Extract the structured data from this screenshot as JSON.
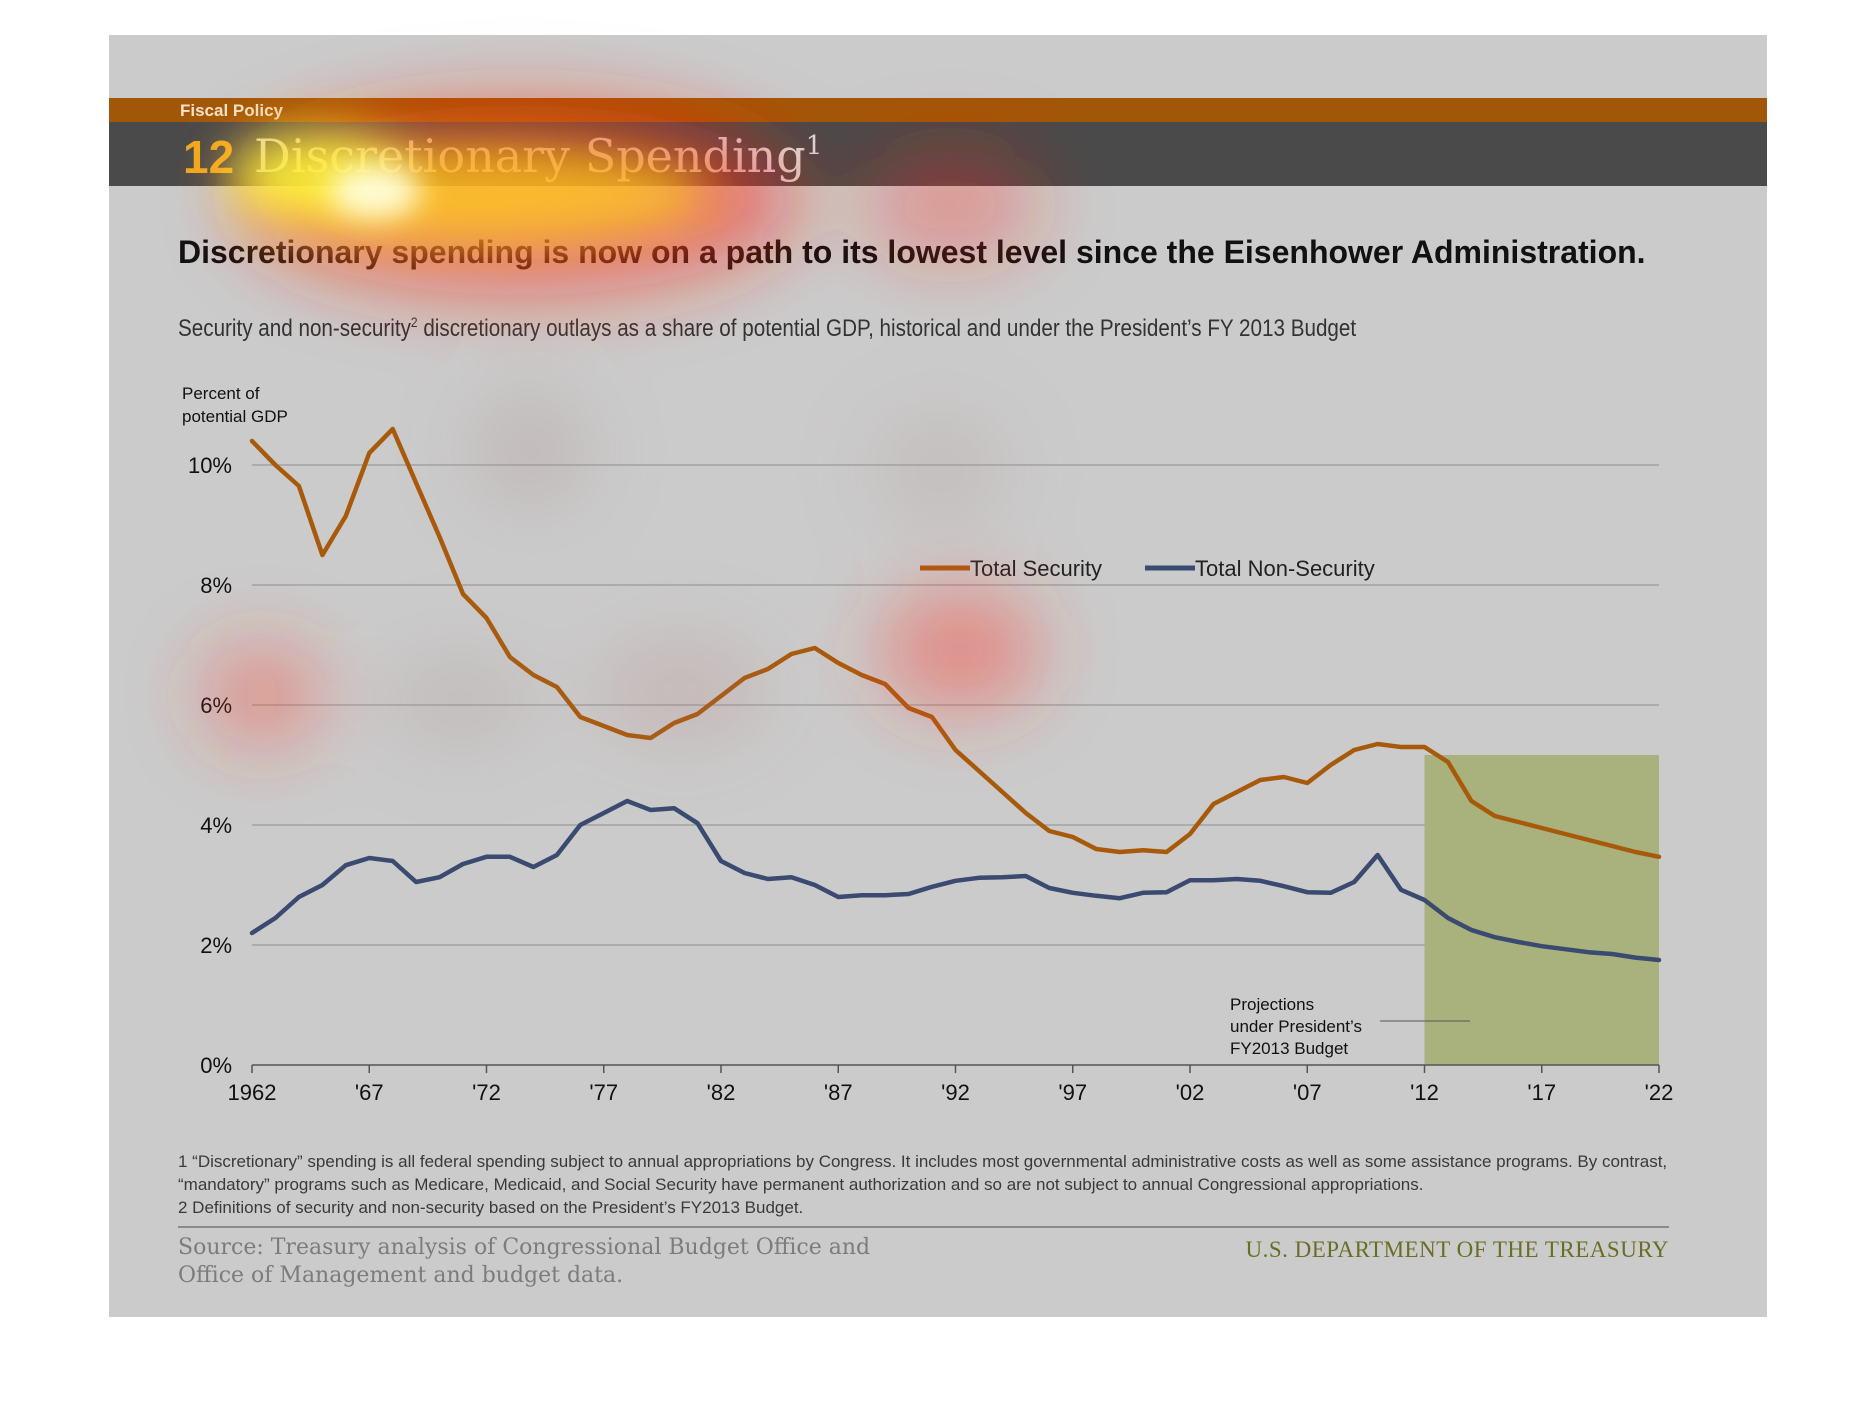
{
  "header": {
    "section": "Fiscal Policy",
    "number": "12",
    "title": "Discretionary Spending",
    "title_sup": "1"
  },
  "headline": "Discretionary spending is now on a path to its lowest level since the Eisenhower Administration.",
  "subhead": {
    "before": "Security and non-security",
    "sup": "2",
    "after": " discretionary outlays as a share of potential GDP, historical and under the President’s FY 2013 Budget"
  },
  "footnotes": [
    "1 “Discretionary” spending is all federal spending subject to annual appropriations by Congress. It includes most governmental administrative costs as well as some assistance programs. By contrast, “mandatory” programs such as Medicare, Medicaid, and Social Security have permanent authorization and so are not subject to annual Congressional appropriations.",
    "2 Definitions of security and non-security based on the President’s FY2013 Budget."
  ],
  "source": "Source: Treasury analysis of Congressional Budget Office and Office of Management and budget data.",
  "agency": "U.S. DEPARTMENT OF THE TREASURY",
  "colors": {
    "security": "#a85a0b",
    "non_security": "#3a4a70",
    "projection_shade": "#a9b27c",
    "bar_orange": "#a25708",
    "bar_dark": "#4a4a4a",
    "background": "#cbcbcb"
  },
  "chart_data": {
    "type": "line",
    "title": "",
    "ylabel": "Percent of potential GDP",
    "xlabel": "",
    "ylim": [
      0,
      10
    ],
    "xlim": [
      1962,
      2022
    ],
    "yticks": [
      0,
      2,
      4,
      6,
      8,
      10
    ],
    "ytick_labels": [
      "0%",
      "2%",
      "4%",
      "6%",
      "8%",
      "10%"
    ],
    "xticks": [
      1962,
      1967,
      1972,
      1977,
      1982,
      1987,
      1992,
      1997,
      2002,
      2007,
      2012,
      2017,
      2022
    ],
    "xtick_labels": [
      "1962",
      "'67",
      "'72",
      "'77",
      "'82",
      "'87",
      "'92",
      "'97",
      "'02",
      "'07",
      "'12",
      "'17",
      "'22"
    ],
    "grid": "horizontal",
    "legend": "top-center",
    "projection_start": 2012,
    "projection_label": "Projections under President’s FY2013 Budget",
    "x": [
      1962,
      1963,
      1964,
      1965,
      1966,
      1967,
      1968,
      1969,
      1970,
      1971,
      1972,
      1973,
      1974,
      1975,
      1976,
      1977,
      1978,
      1979,
      1980,
      1981,
      1982,
      1983,
      1984,
      1985,
      1986,
      1987,
      1988,
      1989,
      1990,
      1991,
      1992,
      1993,
      1994,
      1995,
      1996,
      1997,
      1998,
      1999,
      2000,
      2001,
      2002,
      2003,
      2004,
      2005,
      2006,
      2007,
      2008,
      2009,
      2010,
      2011,
      2012,
      2013,
      2014,
      2015,
      2016,
      2017,
      2018,
      2019,
      2020,
      2021,
      2022
    ],
    "series": [
      {
        "name": "Total Security",
        "values": [
          10.4,
          10.0,
          9.65,
          8.5,
          9.15,
          10.2,
          10.6,
          9.7,
          8.8,
          7.85,
          7.45,
          6.8,
          6.5,
          6.3,
          5.8,
          5.65,
          5.5,
          5.45,
          5.7,
          5.85,
          6.15,
          6.45,
          6.6,
          6.85,
          6.95,
          6.7,
          6.5,
          6.35,
          5.95,
          5.8,
          5.25,
          4.9,
          4.55,
          4.2,
          3.9,
          3.8,
          3.6,
          3.55,
          3.58,
          3.55,
          3.85,
          4.35,
          4.55,
          4.75,
          4.8,
          4.7,
          5.0,
          5.25,
          5.35,
          5.3,
          5.3,
          5.05,
          4.4,
          4.15,
          4.05,
          3.95,
          3.85,
          3.75,
          3.65,
          3.55,
          3.47
        ]
      },
      {
        "name": "Total Non-Security",
        "values": [
          2.2,
          2.45,
          2.8,
          3.0,
          3.33,
          3.45,
          3.4,
          3.05,
          3.13,
          3.35,
          3.47,
          3.47,
          3.3,
          3.5,
          4.0,
          4.2,
          4.4,
          4.25,
          4.28,
          4.03,
          3.4,
          3.2,
          3.1,
          3.13,
          3.0,
          2.8,
          2.83,
          2.83,
          2.85,
          2.97,
          3.07,
          3.12,
          3.13,
          3.15,
          2.95,
          2.87,
          2.82,
          2.78,
          2.87,
          2.88,
          3.08,
          3.08,
          3.1,
          3.07,
          2.98,
          2.88,
          2.87,
          3.05,
          3.5,
          2.92,
          2.75,
          2.45,
          2.25,
          2.13,
          2.05,
          1.98,
          1.93,
          1.88,
          1.85,
          1.79,
          1.75
        ]
      }
    ]
  }
}
